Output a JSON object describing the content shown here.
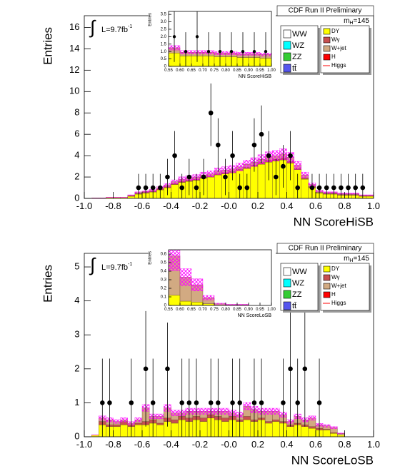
{
  "chart_data": [
    {
      "type": "histogram",
      "title": "CDF Run II Preliminary",
      "x_label": "NN ScoreHiSB",
      "y_label": "Entries",
      "lumi_symbol": "∫",
      "lumi_text": "L=9.7fb",
      "lumi_exp": "-1",
      "mass_m": "m",
      "mass_sub": "H",
      "mass_value": "=145",
      "xlim": [
        -1,
        1
      ],
      "ylim": [
        0,
        17.1
      ],
      "xticks": [
        {
          "value": -1,
          "label": "-1.0"
        },
        -0.8,
        -0.6,
        -0.4,
        -0.2,
        {
          "value": 0,
          "label": "-0.0"
        },
        0.2,
        0.4,
        0.6,
        0.8,
        {
          "value": 1,
          "label": "1.0"
        }
      ],
      "yticks": [
        0,
        2,
        4,
        6,
        8,
        10,
        12,
        14,
        16
      ],
      "bins": [
        -1,
        -0.95,
        -0.9,
        -0.85,
        -0.8,
        -0.75,
        -0.7,
        -0.65,
        -0.6,
        -0.55,
        -0.5,
        -0.45,
        -0.4,
        -0.35,
        -0.3,
        -0.25,
        -0.2,
        -0.15,
        -0.1,
        -0.05,
        0,
        0.05,
        0.1,
        0.15,
        0.2,
        0.25,
        0.3,
        0.35,
        0.4,
        0.45,
        0.5,
        0.55,
        0.6,
        0.65,
        0.7,
        0.75,
        0.8,
        0.85,
        0.9,
        0.95,
        1
      ],
      "uncertainty_fraction": 0.12,
      "band_color": "#ff00ff",
      "series": [
        {
          "name": "DY",
          "color": "#ffff00",
          "values": [
            0,
            0.05,
            0.05,
            0.1,
            0.1,
            0.1,
            0.2,
            0.4,
            0.5,
            0.6,
            0.8,
            1.0,
            1.3,
            1.5,
            1.6,
            1.7,
            1.9,
            2.0,
            2.2,
            2.3,
            2.4,
            2.6,
            2.8,
            3.0,
            3.2,
            3.4,
            3.5,
            3.6,
            3.3,
            2.7,
            1.8,
            1.0,
            0.5,
            0.4,
            0.4,
            0.3,
            0.3,
            0.3,
            0.2,
            0.2
          ]
        },
        {
          "name": "Wγ",
          "color": "#c85050",
          "values": [
            0,
            0,
            0,
            0,
            0,
            0,
            0.05,
            0.05,
            0.05,
            0.05,
            0.1,
            0.1,
            0.1,
            0.1,
            0.1,
            0.1,
            0.1,
            0.1,
            0.1,
            0.1,
            0.1,
            0.1,
            0.1,
            0.1,
            0.15,
            0.15,
            0.15,
            0.15,
            0.15,
            0.1,
            0.1,
            0.1,
            0.05,
            0.05,
            0.05,
            0.05,
            0.05,
            0.05,
            0.05,
            0.05
          ]
        },
        {
          "name": "W+jet",
          "color": "#d2aa82",
          "values": [
            0,
            0,
            0,
            0,
            0,
            0,
            0.05,
            0.1,
            0.1,
            0.1,
            0.1,
            0.15,
            0.15,
            0.2,
            0.2,
            0.2,
            0.2,
            0.2,
            0.25,
            0.25,
            0.25,
            0.25,
            0.3,
            0.3,
            0.3,
            0.35,
            0.35,
            0.4,
            0.4,
            0.3,
            0.3,
            0.2,
            0.15,
            0.1,
            0.1,
            0.1,
            0.1,
            0.1,
            0.05,
            0.05
          ]
        }
      ],
      "legend_extra": [
        {
          "name": "WW",
          "color": "#ffffff"
        },
        {
          "name": "WZ",
          "color": "#00ffff"
        },
        {
          "name": "ZZ",
          "color": "#33cc33"
        },
        {
          "name": "tt̄",
          "color": "#5555ee"
        },
        {
          "name": "H",
          "color": "#ff0000"
        },
        {
          "name": "Higgs",
          "color": "#ff0000",
          "marker": "line"
        }
      ],
      "data": {
        "values": [
          null,
          null,
          null,
          null,
          null,
          null,
          null,
          1,
          1,
          1,
          1,
          2,
          4,
          1,
          2,
          1,
          2,
          8,
          5,
          2,
          4,
          1,
          1,
          5,
          6,
          4,
          2,
          3,
          4,
          1,
          null,
          1,
          1,
          1,
          1,
          1,
          1,
          1,
          1,
          null
        ],
        "errors": [
          null,
          null,
          null,
          null,
          null,
          null,
          null,
          1.3,
          1.3,
          1.3,
          1.3,
          1.7,
          2.3,
          1.3,
          1.7,
          1.3,
          1.7,
          3.1,
          2.5,
          1.7,
          2.3,
          1.3,
          1.3,
          2.5,
          2.7,
          2.3,
          1.7,
          2.0,
          2.3,
          1.3,
          null,
          1.3,
          1.3,
          1.3,
          1.3,
          1.3,
          1.3,
          1.3,
          1.3,
          null
        ]
      }
    },
    {
      "type": "histogram",
      "x_label": "NN ScoreHiSB",
      "y_label": "Entries",
      "xlim": [
        0.55,
        1
      ],
      "ylim": [
        0,
        3.7
      ],
      "xticks": [
        0.55,
        {
          "value": 0.6,
          "label": "0.60"
        },
        0.65,
        {
          "value": 0.7,
          "label": "0.70"
        },
        0.75,
        {
          "value": 0.8,
          "label": "0.80"
        },
        0.85,
        {
          "value": 0.9,
          "label": "0.90"
        },
        0.95,
        {
          "value": 1,
          "label": "1.00"
        }
      ],
      "yticks": [
        0,
        0.5,
        {
          "value": 1,
          "label": "1.0"
        },
        1.5,
        {
          "value": 2,
          "label": "2.0"
        },
        2.5,
        {
          "value": 3,
          "label": "3.0"
        },
        3.5
      ],
      "bins": [
        0.55,
        0.6,
        0.65,
        0.7,
        0.75,
        0.8,
        0.85,
        0.9,
        0.95,
        1
      ],
      "uncertainty_fraction": 0.12,
      "band_color": "#ff00ff",
      "series": [
        {
          "name": "DY",
          "color": "#ffff00",
          "values": [
            0.9,
            0.7,
            0.7,
            0.7,
            0.65,
            0.65,
            0.6,
            0.6,
            0.55
          ]
        },
        {
          "name": "W+jet",
          "color": "#d2aa82",
          "values": [
            0.35,
            0.25,
            0.25,
            0.25,
            0.25,
            0.25,
            0.25,
            0.25,
            0.25
          ]
        }
      ],
      "data": {
        "values": [
          2,
          1,
          2,
          1,
          1,
          1,
          1,
          1,
          1
        ],
        "errors": [
          1.7,
          1.3,
          1.7,
          1.3,
          1.3,
          1.3,
          1.3,
          1.3,
          1.3
        ]
      }
    },
    {
      "type": "histogram",
      "title": "CDF Run II Preliminary",
      "x_label": "NN ScoreLoSB",
      "y_label": "Entries",
      "lumi_symbol": "∫",
      "lumi_text": "L=9.7fb",
      "lumi_exp": "-1",
      "mass_m": "m",
      "mass_sub": "H",
      "mass_value": "=145",
      "xlim": [
        -1,
        1
      ],
      "ylim": [
        0,
        5.4
      ],
      "xticks": [
        {
          "value": -1,
          "label": "-1.0"
        },
        -0.8,
        -0.6,
        -0.4,
        -0.2,
        {
          "value": 0,
          "label": "-0.0"
        },
        0.2,
        0.4,
        0.6,
        0.8,
        {
          "value": 1,
          "label": "1.0"
        }
      ],
      "yticks": [
        0,
        1,
        2,
        3,
        4,
        5
      ],
      "bins": [
        -1,
        -0.95,
        -0.9,
        -0.85,
        -0.8,
        -0.75,
        -0.7,
        -0.65,
        -0.6,
        -0.55,
        -0.5,
        -0.45,
        -0.4,
        -0.35,
        -0.3,
        -0.25,
        -0.2,
        -0.15,
        -0.1,
        -0.05,
        0,
        0.05,
        0.1,
        0.15,
        0.2,
        0.25,
        0.3,
        0.35,
        0.4,
        0.45,
        0.5,
        0.55,
        0.6,
        0.65,
        0.7,
        0.75,
        0.8,
        0.85,
        0.9,
        0.95,
        1
      ],
      "uncertainty_fraction": 0.12,
      "band_color": "#ff00ff",
      "series": [
        {
          "name": "DY",
          "color": "#ffff00",
          "values": [
            0,
            0.05,
            0.35,
            0.3,
            0.3,
            0.35,
            0.3,
            0.35,
            0.35,
            0.4,
            0.35,
            0.45,
            0.4,
            0.5,
            0.45,
            0.5,
            0.45,
            0.55,
            0.5,
            0.45,
            0.5,
            0.45,
            0.5,
            0.45,
            0.5,
            0.4,
            0.45,
            0.4,
            0.3,
            0.35,
            0.3,
            0.25,
            0.2,
            0.2,
            0.1,
            0.05,
            0,
            0,
            0,
            0
          ]
        },
        {
          "name": "Wγ",
          "color": "#c85050",
          "values": [
            0,
            0,
            0.1,
            0.05,
            0.05,
            0.1,
            0.05,
            0.05,
            0.1,
            0.1,
            0.05,
            0.1,
            0.1,
            0.1,
            0.1,
            0.1,
            0.1,
            0.1,
            0.1,
            0.1,
            0.1,
            0.05,
            0.1,
            0.05,
            0.05,
            0.05,
            0.05,
            0.05,
            0.05,
            0.05,
            0.05,
            0.05,
            0.05,
            0.02,
            0.02,
            0,
            0,
            0,
            0,
            0
          ]
        },
        {
          "name": "W+jet",
          "color": "#d2aa82",
          "values": [
            0,
            0,
            0.1,
            0.15,
            0.1,
            0.05,
            0.05,
            0.1,
            0.4,
            0.1,
            0.2,
            0.3,
            0.2,
            0.1,
            0.2,
            0.15,
            0.2,
            0.1,
            0.15,
            0.2,
            0.1,
            0.15,
            0.3,
            0.3,
            0.2,
            0.3,
            0.25,
            0.2,
            0.1,
            0.2,
            0.15,
            0.25,
            0.1,
            0.1,
            0.15,
            0.05,
            0,
            0,
            0,
            0
          ]
        }
      ],
      "legend_extra": [
        {
          "name": "WW",
          "color": "#ffffff"
        },
        {
          "name": "WZ",
          "color": "#00ffff"
        },
        {
          "name": "ZZ",
          "color": "#33cc33"
        },
        {
          "name": "tt̄",
          "color": "#5555ee"
        },
        {
          "name": "H",
          "color": "#ff0000"
        },
        {
          "name": "Higgs",
          "color": "#ff0000",
          "marker": "line"
        }
      ],
      "data": {
        "values": [
          null,
          null,
          1,
          1,
          null,
          null,
          1,
          null,
          2,
          1,
          null,
          2,
          null,
          1,
          1,
          1,
          null,
          1,
          1,
          null,
          1,
          1,
          null,
          1,
          1,
          null,
          null,
          1,
          2,
          1,
          2,
          null,
          1,
          null,
          null,
          null,
          null,
          null,
          null,
          null
        ],
        "errors": [
          null,
          null,
          1.3,
          1.3,
          null,
          null,
          1.3,
          null,
          1.7,
          1.3,
          null,
          1.7,
          null,
          1.3,
          1.3,
          1.3,
          null,
          1.3,
          1.3,
          null,
          1.3,
          1.3,
          null,
          1.3,
          1.3,
          null,
          null,
          1.3,
          1.7,
          1.3,
          1.7,
          null,
          1.3,
          null,
          null,
          null,
          null,
          null,
          null,
          null
        ]
      }
    },
    {
      "type": "histogram",
      "x_label": "NN ScoreLoSB",
      "y_label": "Entries",
      "xlim": [
        0.55,
        1
      ],
      "ylim": [
        0,
        0.65
      ],
      "xticks": [
        0.55,
        {
          "value": 0.6,
          "label": "0.60"
        },
        0.65,
        {
          "value": 0.7,
          "label": "0.70"
        },
        0.75,
        {
          "value": 0.8,
          "label": "0.80"
        },
        0.85,
        {
          "value": 0.9,
          "label": "0.90"
        },
        0.95,
        {
          "value": 1,
          "label": "1.00"
        }
      ],
      "yticks": [
        0,
        0.1,
        0.2,
        0.3,
        0.4,
        0.5,
        0.6
      ],
      "bins": [
        0.55,
        0.6,
        0.65,
        0.7,
        0.75,
        0.8,
        0.85,
        0.9,
        0.95,
        1
      ],
      "uncertainty_fraction": 0.3,
      "band_color": "#ff00ff",
      "series": [
        {
          "name": "DY",
          "color": "#ffff00",
          "values": [
            0.12,
            0.05,
            0.04,
            0.02,
            0,
            0,
            0,
            0,
            0
          ]
        },
        {
          "name": "W+jet",
          "color": "#d2aa82",
          "values": [
            0.46,
            0.28,
            0.2,
            0.07,
            0.02,
            0.01,
            0.01,
            0,
            0
          ]
        }
      ]
    }
  ]
}
